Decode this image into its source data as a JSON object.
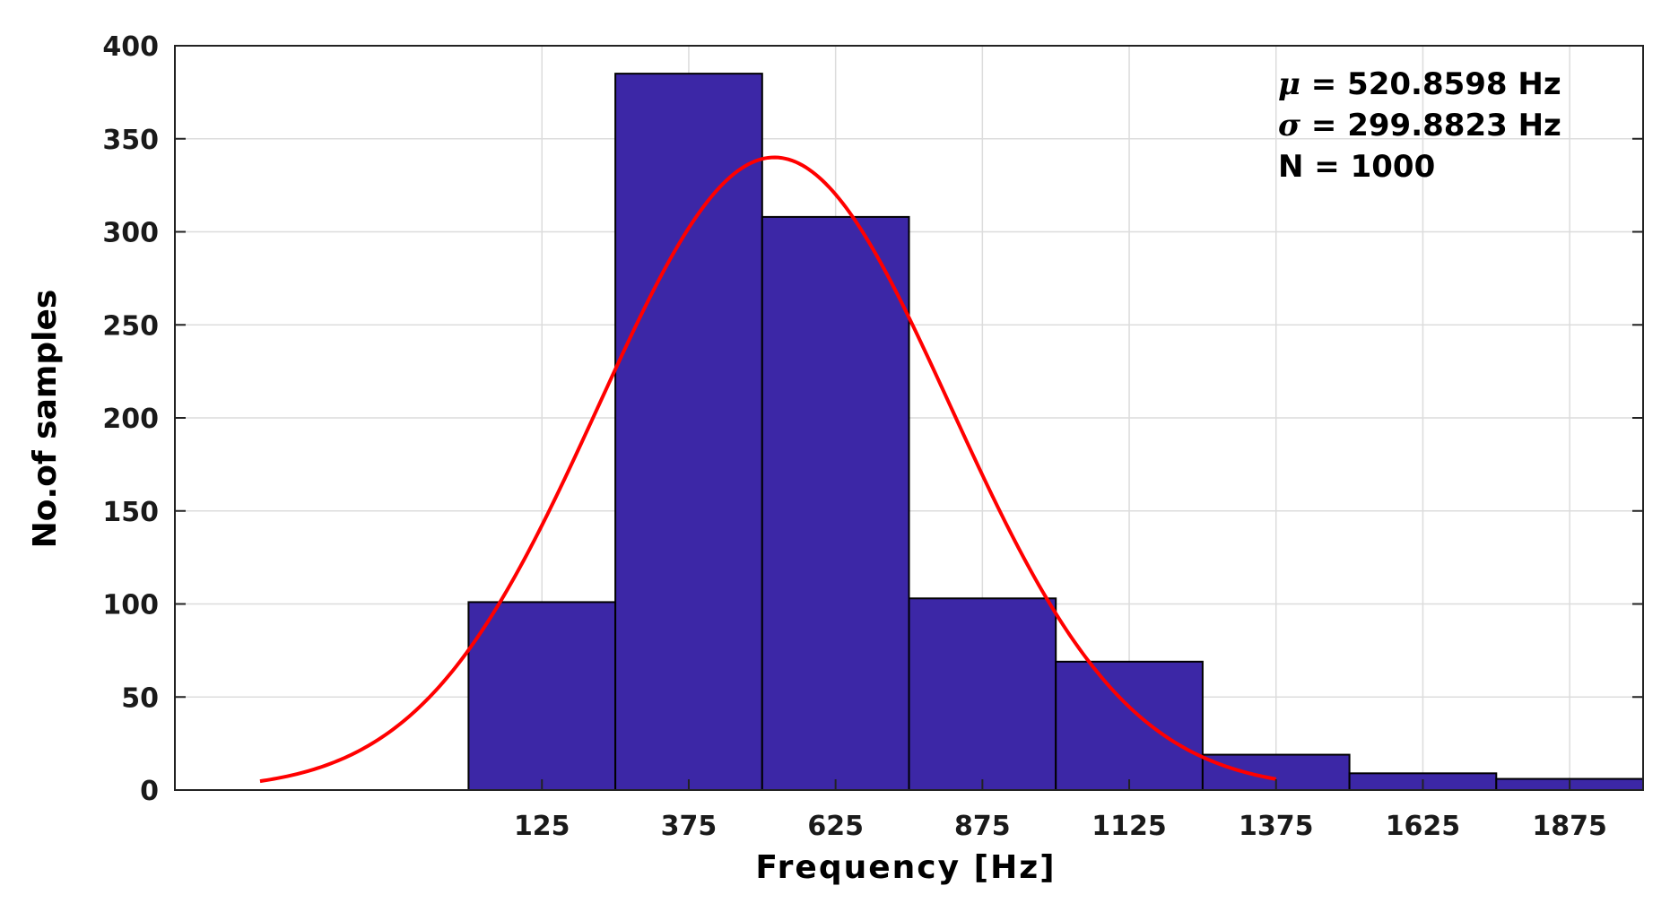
{
  "chart_data": {
    "type": "bar",
    "subtype": "histogram",
    "title": "",
    "xlabel": "Frequency [Hz]",
    "ylabel": "No.of samples",
    "xlim": [
      -500,
      2000
    ],
    "ylim": [
      0,
      400
    ],
    "x_ticks": [
      125,
      375,
      625,
      875,
      1125,
      1375,
      1625,
      1875
    ],
    "x_tick_labels": [
      "125",
      "375",
      "625",
      "875",
      "1125",
      "1375",
      "1625",
      "1875"
    ],
    "y_ticks": [
      0,
      50,
      100,
      150,
      200,
      250,
      300,
      350,
      400
    ],
    "y_tick_labels": [
      "0",
      "50",
      "100",
      "150",
      "200",
      "250",
      "300",
      "350",
      "400"
    ],
    "grid": true,
    "categories": [
      "125",
      "375",
      "625",
      "875",
      "1125",
      "1375",
      "1625",
      "1875"
    ],
    "bins": [
      {
        "center": 125,
        "start": 0,
        "end": 250,
        "value": 101
      },
      {
        "center": 375,
        "start": 250,
        "end": 500,
        "value": 385
      },
      {
        "center": 625,
        "start": 500,
        "end": 750,
        "value": 308
      },
      {
        "center": 875,
        "start": 750,
        "end": 1000,
        "value": 103
      },
      {
        "center": 1125,
        "start": 1000,
        "end": 1250,
        "value": 69
      },
      {
        "center": 1375,
        "start": 1250,
        "end": 1500,
        "value": 19
      },
      {
        "center": 1625,
        "start": 1500,
        "end": 1750,
        "value": 9
      },
      {
        "center": 1875,
        "start": 1750,
        "end": 2000,
        "value": 6
      }
    ],
    "values": [
      101,
      385,
      308,
      103,
      69,
      19,
      9,
      6
    ],
    "fit_curve": {
      "type": "normal",
      "mean": 520.8598,
      "std": 299.8823,
      "n": 1000,
      "x_range": [
        -355,
        1375
      ],
      "peak_value": 340,
      "color": "#ff0000"
    },
    "annotations": [
      {
        "symbol": "μ",
        "text": " = 520.8598 Hz"
      },
      {
        "symbol": "σ",
        "text": " = 299.8823 Hz"
      },
      {
        "symbol": "",
        "text": "N = 1000"
      }
    ],
    "bar_color": "#3c27a6",
    "bar_edge_color": "#000000"
  }
}
